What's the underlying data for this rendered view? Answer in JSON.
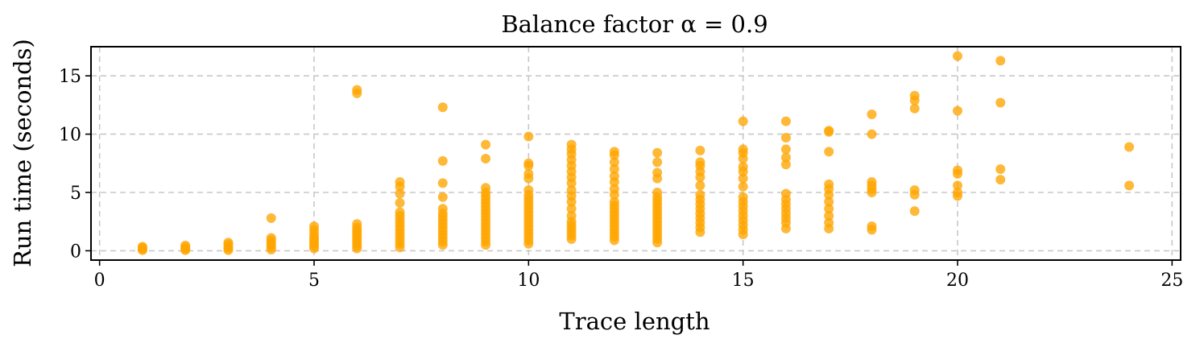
{
  "chart_data": {
    "type": "scatter",
    "title": "Balance factor α = 0.9",
    "xlabel": "Trace length",
    "ylabel": "Run time (seconds)",
    "xlim": [
      -0.2,
      25.2
    ],
    "ylim": [
      -0.8,
      17.5
    ],
    "xticks": [
      0,
      5,
      10,
      15,
      20,
      25
    ],
    "yticks": [
      0,
      5,
      10,
      15
    ],
    "grid": true,
    "color": "#FFA500",
    "series": [
      {
        "points": [
          [
            1,
            0.05
          ],
          [
            1,
            0.15
          ],
          [
            1,
            0.25
          ],
          [
            1,
            0.35
          ],
          [
            2,
            0.05
          ],
          [
            2,
            0.15
          ],
          [
            2,
            0.3
          ],
          [
            2,
            0.45
          ],
          [
            3,
            0.05
          ],
          [
            3,
            0.2
          ],
          [
            3,
            0.35
          ],
          [
            3,
            0.55
          ],
          [
            3,
            0.7
          ],
          [
            4,
            0.1
          ],
          [
            4,
            0.3
          ],
          [
            4,
            0.5
          ],
          [
            4,
            0.7
          ],
          [
            4,
            0.9
          ],
          [
            4,
            1.1
          ],
          [
            4,
            2.8
          ],
          [
            5,
            0.2
          ],
          [
            5,
            0.4
          ],
          [
            5,
            0.6
          ],
          [
            5,
            0.8
          ],
          [
            5,
            1.0
          ],
          [
            5,
            1.2
          ],
          [
            5,
            1.5
          ],
          [
            5,
            1.8
          ],
          [
            5,
            2.1
          ],
          [
            6,
            0.2
          ],
          [
            6,
            0.4
          ],
          [
            6,
            0.6
          ],
          [
            6,
            0.8
          ],
          [
            6,
            1.0
          ],
          [
            6,
            1.2
          ],
          [
            6,
            1.4
          ],
          [
            6,
            1.6
          ],
          [
            6,
            1.8
          ],
          [
            6,
            2.0
          ],
          [
            6,
            2.3
          ],
          [
            6,
            13.5
          ],
          [
            6,
            13.8
          ],
          [
            7,
            0.3
          ],
          [
            7,
            0.6
          ],
          [
            7,
            0.9
          ],
          [
            7,
            1.2
          ],
          [
            7,
            1.5
          ],
          [
            7,
            1.8
          ],
          [
            7,
            2.1
          ],
          [
            7,
            2.4
          ],
          [
            7,
            2.7
          ],
          [
            7,
            3.0
          ],
          [
            7,
            3.3
          ],
          [
            7,
            4.1
          ],
          [
            7,
            4.9
          ],
          [
            7,
            5.5
          ],
          [
            7,
            5.9
          ],
          [
            8,
            0.5
          ],
          [
            8,
            0.8
          ],
          [
            8,
            1.1
          ],
          [
            8,
            1.4
          ],
          [
            8,
            1.7
          ],
          [
            8,
            2.0
          ],
          [
            8,
            2.3
          ],
          [
            8,
            2.6
          ],
          [
            8,
            2.9
          ],
          [
            8,
            3.2
          ],
          [
            8,
            3.6
          ],
          [
            8,
            4.6
          ],
          [
            8,
            5.8
          ],
          [
            8,
            7.7
          ],
          [
            8,
            12.3
          ],
          [
            9,
            0.5
          ],
          [
            9,
            0.8
          ],
          [
            9,
            1.1
          ],
          [
            9,
            1.4
          ],
          [
            9,
            1.7
          ],
          [
            9,
            2.0
          ],
          [
            9,
            2.3
          ],
          [
            9,
            2.6
          ],
          [
            9,
            2.9
          ],
          [
            9,
            3.2
          ],
          [
            9,
            3.5
          ],
          [
            9,
            3.8
          ],
          [
            9,
            4.1
          ],
          [
            9,
            4.4
          ],
          [
            9,
            4.7
          ],
          [
            9,
            5.0
          ],
          [
            9,
            5.4
          ],
          [
            9,
            7.9
          ],
          [
            9,
            9.1
          ],
          [
            10,
            0.6
          ],
          [
            10,
            0.9
          ],
          [
            10,
            1.2
          ],
          [
            10,
            1.5
          ],
          [
            10,
            1.8
          ],
          [
            10,
            2.1
          ],
          [
            10,
            2.4
          ],
          [
            10,
            2.7
          ],
          [
            10,
            3.0
          ],
          [
            10,
            3.3
          ],
          [
            10,
            3.6
          ],
          [
            10,
            3.9
          ],
          [
            10,
            4.2
          ],
          [
            10,
            4.5
          ],
          [
            10,
            4.8
          ],
          [
            10,
            5.2
          ],
          [
            10,
            6.2
          ],
          [
            10,
            6.6
          ],
          [
            10,
            7.3
          ],
          [
            10,
            7.5
          ],
          [
            10,
            9.8
          ],
          [
            11,
            1.0
          ],
          [
            11,
            1.3
          ],
          [
            11,
            1.6
          ],
          [
            11,
            1.9
          ],
          [
            11,
            2.2
          ],
          [
            11,
            2.5
          ],
          [
            11,
            3.0
          ],
          [
            11,
            3.6
          ],
          [
            11,
            4.2
          ],
          [
            11,
            4.7
          ],
          [
            11,
            5.2
          ],
          [
            11,
            5.8
          ],
          [
            11,
            6.3
          ],
          [
            11,
            6.8
          ],
          [
            11,
            7.3
          ],
          [
            11,
            7.8
          ],
          [
            11,
            8.3
          ],
          [
            11,
            8.7
          ],
          [
            11,
            9.1
          ],
          [
            12,
            0.9
          ],
          [
            12,
            1.2
          ],
          [
            12,
            1.5
          ],
          [
            12,
            1.8
          ],
          [
            12,
            2.1
          ],
          [
            12,
            2.4
          ],
          [
            12,
            2.7
          ],
          [
            12,
            3.0
          ],
          [
            12,
            3.3
          ],
          [
            12,
            3.6
          ],
          [
            12,
            3.9
          ],
          [
            12,
            4.2
          ],
          [
            12,
            4.8
          ],
          [
            12,
            5.3
          ],
          [
            12,
            5.9
          ],
          [
            12,
            6.4
          ],
          [
            12,
            7.0
          ],
          [
            12,
            7.6
          ],
          [
            12,
            8.2
          ],
          [
            12,
            8.5
          ],
          [
            13,
            0.7
          ],
          [
            13,
            1.0
          ],
          [
            13,
            1.3
          ],
          [
            13,
            1.6
          ],
          [
            13,
            1.9
          ],
          [
            13,
            2.2
          ],
          [
            13,
            2.5
          ],
          [
            13,
            2.8
          ],
          [
            13,
            3.1
          ],
          [
            13,
            3.4
          ],
          [
            13,
            3.7
          ],
          [
            13,
            4.0
          ],
          [
            13,
            4.3
          ],
          [
            13,
            4.6
          ],
          [
            13,
            5.0
          ],
          [
            13,
            6.2
          ],
          [
            13,
            6.7
          ],
          [
            13,
            7.6
          ],
          [
            13,
            8.4
          ],
          [
            14,
            1.6
          ],
          [
            14,
            2.0
          ],
          [
            14,
            2.4
          ],
          [
            14,
            2.8
          ],
          [
            14,
            3.2
          ],
          [
            14,
            3.6
          ],
          [
            14,
            4.0
          ],
          [
            14,
            4.4
          ],
          [
            14,
            4.8
          ],
          [
            14,
            5.6
          ],
          [
            14,
            6.3
          ],
          [
            14,
            6.8
          ],
          [
            14,
            7.3
          ],
          [
            14,
            7.6
          ],
          [
            14,
            8.6
          ],
          [
            15,
            1.4
          ],
          [
            15,
            1.8
          ],
          [
            15,
            2.2
          ],
          [
            15,
            2.6
          ],
          [
            15,
            3.0
          ],
          [
            15,
            3.4
          ],
          [
            15,
            3.8
          ],
          [
            15,
            4.2
          ],
          [
            15,
            4.6
          ],
          [
            15,
            5.5
          ],
          [
            15,
            6.2
          ],
          [
            15,
            6.8
          ],
          [
            15,
            7.2
          ],
          [
            15,
            7.9
          ],
          [
            15,
            8.4
          ],
          [
            15,
            8.7
          ],
          [
            15,
            11.1
          ],
          [
            16,
            1.9
          ],
          [
            16,
            2.4
          ],
          [
            16,
            2.8
          ],
          [
            16,
            3.2
          ],
          [
            16,
            3.6
          ],
          [
            16,
            4.0
          ],
          [
            16,
            4.4
          ],
          [
            16,
            4.9
          ],
          [
            16,
            7.4
          ],
          [
            16,
            8.0
          ],
          [
            16,
            8.7
          ],
          [
            16,
            9.7
          ],
          [
            16,
            11.1
          ],
          [
            17,
            1.9
          ],
          [
            17,
            2.4
          ],
          [
            17,
            3.0
          ],
          [
            17,
            3.6
          ],
          [
            17,
            4.2
          ],
          [
            17,
            4.8
          ],
          [
            17,
            5.3
          ],
          [
            17,
            5.7
          ],
          [
            17,
            8.5
          ],
          [
            17,
            10.2
          ],
          [
            17,
            10.3
          ],
          [
            18,
            1.8
          ],
          [
            18,
            2.1
          ],
          [
            18,
            5.0
          ],
          [
            18,
            5.3
          ],
          [
            18,
            5.6
          ],
          [
            18,
            5.9
          ],
          [
            18,
            10.0
          ],
          [
            18,
            11.7
          ],
          [
            19,
            3.4
          ],
          [
            19,
            4.8
          ],
          [
            19,
            5.2
          ],
          [
            19,
            12.2
          ],
          [
            19,
            12.9
          ],
          [
            19,
            13.3
          ],
          [
            20,
            4.7
          ],
          [
            20,
            5.0
          ],
          [
            20,
            5.6
          ],
          [
            20,
            6.6
          ],
          [
            20,
            6.9
          ],
          [
            20,
            12.0
          ],
          [
            20,
            16.7
          ],
          [
            21,
            6.1
          ],
          [
            21,
            7.0
          ],
          [
            21,
            12.7
          ],
          [
            21,
            16.3
          ],
          [
            24,
            5.6
          ],
          [
            24,
            8.9
          ]
        ]
      }
    ]
  }
}
